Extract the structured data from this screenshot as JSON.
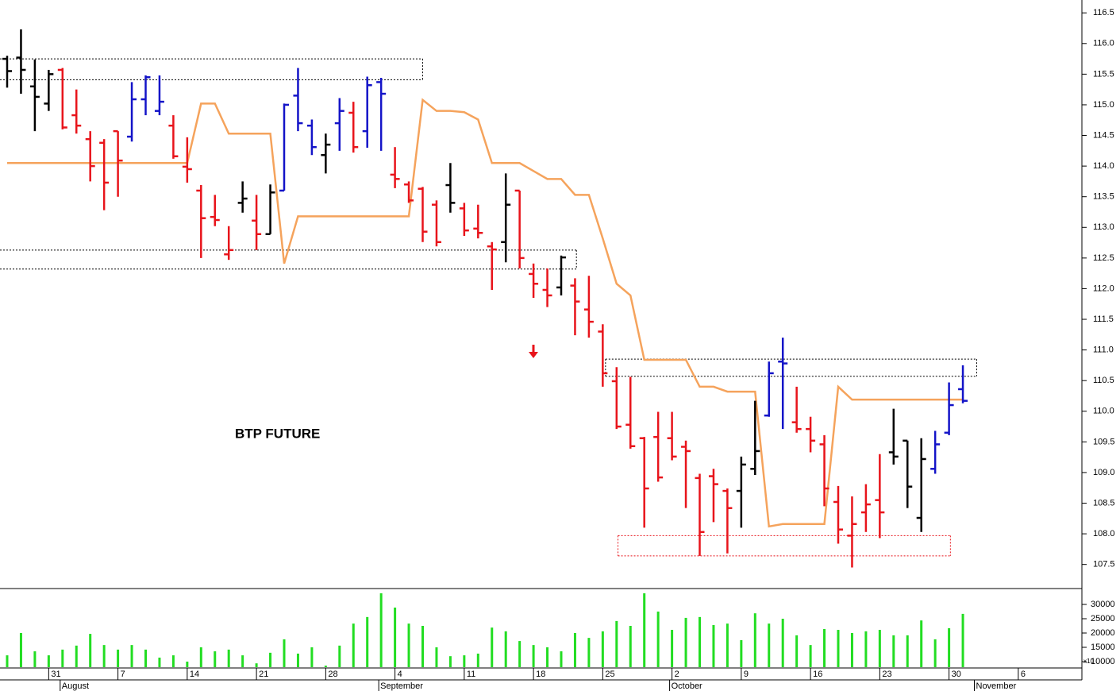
{
  "chart_data": {
    "type": "ohlc",
    "title": "BTP FUTURE",
    "categories": [
      null,
      null,
      null,
      "31",
      null,
      null,
      null,
      null,
      "7",
      null,
      null,
      null,
      null,
      "14",
      null,
      null,
      null,
      null,
      "21",
      null,
      null,
      null,
      null,
      "28",
      null,
      null,
      null,
      null,
      "4",
      null,
      null,
      null,
      null,
      "11",
      null,
      null,
      null,
      null,
      "18",
      null,
      null,
      null,
      null,
      "25",
      null,
      null,
      null,
      null,
      "2",
      null,
      null,
      null,
      null,
      "9",
      null,
      null,
      null,
      null,
      "16",
      null,
      null,
      null,
      null,
      "23",
      null,
      null,
      null,
      null,
      "30",
      null,
      null,
      null,
      null,
      "6",
      null,
      null,
      null,
      null
    ],
    "month_labels": [
      null,
      null,
      null,
      null,
      "August",
      null,
      null,
      null,
      null,
      null,
      null,
      null,
      null,
      null,
      null,
      null,
      null,
      null,
      null,
      null,
      null,
      null,
      null,
      null,
      null,
      null,
      null,
      "September",
      null,
      null,
      null,
      null,
      null,
      null,
      null,
      null,
      null,
      null,
      null,
      null,
      null,
      null,
      null,
      null,
      null,
      null,
      null,
      null,
      "October",
      null,
      null,
      null,
      null,
      null,
      null,
      null,
      null,
      null,
      null,
      null,
      null,
      null,
      null,
      null,
      null,
      null,
      null,
      null,
      null,
      null,
      "November",
      null,
      null,
      null,
      null,
      null,
      null,
      null
    ],
    "open": [
      115.75,
      115.77,
      115.3,
      115.02,
      115.57,
      114.83,
      114.44,
      114.38,
      114.57,
      114.48,
      115.09,
      114.9,
      114.66,
      113.99,
      113.6,
      113.17,
      112.56,
      113.4,
      113.11,
      112.89,
      113.6,
      115.15,
      114.66,
      114.18,
      114.7,
      114.87,
      114.57,
      115.37,
      113.86,
      113.7,
      113.63,
      113.37,
      113.69,
      113.31,
      112.98,
      112.69,
      112.76,
      113.6,
      112.24,
      111.98,
      112.02,
      112.05,
      111.66,
      111.3,
      110.49,
      109.78,
      109.56,
      109.58,
      109.56,
      109.42,
      108.91,
      108.94,
      108.7,
      108.7,
      109.06,
      109.93,
      110.81,
      109.82,
      109.71,
      109.46,
      108.52,
      107.97,
      108.35,
      108.55,
      109.33,
      109.52,
      108.26,
      109.06,
      109.65,
      110.36,
      null,
      null,
      null,
      null,
      null,
      null,
      null,
      null
    ],
    "high": [
      115.8,
      116.23,
      115.74,
      115.57,
      115.6,
      115.25,
      114.57,
      114.44,
      114.57,
      115.37,
      115.48,
      115.48,
      114.83,
      114.47,
      113.69,
      113.53,
      113.02,
      113.75,
      113.53,
      113.7,
      115.02,
      115.6,
      114.76,
      114.53,
      115.11,
      115.05,
      115.46,
      115.44,
      114.31,
      113.75,
      113.66,
      113.44,
      114.05,
      113.4,
      113.37,
      112.76,
      113.88,
      113.6,
      112.41,
      112.33,
      112.54,
      112.17,
      112.21,
      111.42,
      110.72,
      110.56,
      109.58,
      109.99,
      109.99,
      109.52,
      108.98,
      109.06,
      108.74,
      109.26,
      110.17,
      110.81,
      111.2,
      110.4,
      109.91,
      109.61,
      108.78,
      108.61,
      108.81,
      109.3,
      110.04,
      109.52,
      109.56,
      109.68,
      110.47,
      110.75,
      null,
      null,
      null,
      null,
      null,
      null,
      null,
      null
    ],
    "low": [
      115.28,
      115.18,
      114.57,
      114.9,
      114.6,
      114.53,
      113.75,
      113.28,
      113.5,
      114.4,
      114.83,
      114.83,
      114.12,
      113.73,
      112.5,
      113.02,
      112.47,
      113.24,
      112.63,
      112.89,
      113.6,
      114.57,
      114.18,
      113.88,
      114.25,
      114.22,
      114.3,
      114.25,
      113.64,
      113.4,
      112.76,
      112.69,
      113.24,
      112.86,
      112.82,
      111.98,
      112.43,
      112.33,
      111.85,
      111.7,
      111.89,
      111.24,
      111.2,
      110.4,
      109.71,
      109.39,
      108.1,
      108.85,
      109.2,
      108.42,
      107.64,
      108.19,
      107.68,
      108.1,
      108.96,
      109.91,
      109.71,
      109.65,
      109.33,
      108.45,
      107.84,
      107.45,
      108.03,
      107.93,
      109.13,
      108.42,
      108.03,
      108.98,
      109.61,
      110.13,
      null,
      null,
      null,
      null,
      null,
      null,
      null,
      null
    ],
    "close": [
      115.55,
      115.57,
      115.13,
      115.5,
      114.63,
      114.66,
      114.0,
      113.73,
      114.09,
      115.09,
      115.45,
      115.05,
      114.16,
      113.95,
      113.15,
      113.12,
      112.63,
      113.47,
      112.89,
      113.57,
      115.0,
      114.7,
      114.31,
      114.35,
      114.9,
      114.31,
      115.32,
      115.18,
      113.79,
      113.44,
      112.93,
      112.76,
      113.4,
      112.95,
      112.91,
      112.64,
      113.37,
      112.5,
      112.08,
      111.89,
      112.51,
      111.79,
      111.46,
      110.62,
      109.75,
      109.43,
      108.74,
      108.92,
      109.26,
      109.35,
      108.03,
      108.81,
      108.42,
      109.13,
      109.35,
      110.62,
      110.78,
      109.71,
      109.52,
      108.74,
      108.07,
      108.16,
      108.48,
      108.35,
      109.26,
      108.77,
      109.22,
      109.46,
      110.1,
      110.17,
      null,
      null,
      null,
      null,
      null,
      null,
      null,
      null
    ],
    "bar_colors": [
      "black",
      "black",
      "black",
      "black",
      "red",
      "red",
      "red",
      "red",
      "red",
      "blue",
      "blue",
      "blue",
      "red",
      "red",
      "red",
      "red",
      "red",
      "black",
      "red",
      "black",
      "blue",
      "blue",
      "blue",
      "black",
      "blue",
      "red",
      "blue",
      "blue",
      "red",
      "red",
      "red",
      "red",
      "black",
      "red",
      "red",
      "red",
      "black",
      "red",
      "red",
      "red",
      "black",
      "red",
      "red",
      "red",
      "red",
      "red",
      "red",
      "red",
      "red",
      "red",
      "red",
      "red",
      "red",
      "black",
      "black",
      "blue",
      "blue",
      "red",
      "red",
      "red",
      "red",
      "red",
      "red",
      "red",
      "black",
      "black",
      "black",
      "blue",
      "blue",
      "blue",
      null,
      null,
      null,
      null,
      null,
      null,
      null,
      null
    ],
    "palette": {
      "red": "#e8141b",
      "black": "#000000",
      "blue": "#1414c8"
    },
    "overlay": {
      "color": "#f5a35c",
      "values": [
        114.05,
        114.05,
        114.05,
        114.05,
        114.05,
        114.05,
        114.05,
        114.05,
        114.05,
        114.05,
        114.05,
        114.05,
        114.05,
        114.05,
        115.02,
        115.02,
        114.53,
        114.53,
        114.53,
        114.53,
        112.41,
        113.18,
        113.18,
        113.18,
        113.18,
        113.18,
        113.18,
        113.18,
        113.18,
        113.18,
        115.08,
        114.9,
        114.9,
        114.88,
        114.76,
        114.05,
        114.05,
        114.05,
        113.92,
        113.79,
        113.79,
        113.53,
        113.53,
        112.82,
        112.08,
        111.89,
        110.84,
        110.84,
        110.84,
        110.84,
        110.4,
        110.4,
        110.32,
        110.32,
        110.32,
        108.12,
        108.16,
        108.16,
        108.16,
        108.16,
        110.4,
        110.19,
        110.19,
        110.19,
        110.19,
        110.19,
        110.19,
        110.19,
        110.19,
        110.19,
        null,
        null,
        null,
        null,
        null,
        null,
        null,
        null
      ]
    },
    "zones": [
      {
        "top": 115.75,
        "bottom": 115.41,
        "color": "#000000"
      },
      {
        "top": 112.63,
        "bottom": 112.32,
        "color": "#000000"
      },
      {
        "top": 110.85,
        "bottom": 110.57,
        "color": "#000000"
      },
      {
        "top": 107.97,
        "bottom": 107.64,
        "color": "#e8141b"
      }
    ],
    "ylim": [
      107.12,
      116.71
    ],
    "yticks": [
      107.5,
      {
        "value": 108,
        "label": "108.0"
      },
      108.5,
      {
        "value": 109,
        "label": "109.0"
      },
      109.5,
      {
        "value": 110,
        "label": "110.0"
      },
      110.5,
      {
        "value": 111,
        "label": "111.0"
      },
      111.5,
      {
        "value": 112,
        "label": "112.0"
      },
      112.5,
      {
        "value": 113,
        "label": "113.0"
      },
      113.5,
      {
        "value": 114,
        "label": "114.0"
      },
      114.5,
      {
        "value": 115,
        "label": "115.0"
      },
      115.5,
      {
        "value": 116,
        "label": "116.0"
      },
      116.5
    ],
    "volume": {
      "color": "#22dd22",
      "multiplier_label": "x10",
      "values": [
        12200,
        20000,
        13600,
        12200,
        14200,
        15600,
        19700,
        15800,
        14200,
        15800,
        14200,
        11400,
        12200,
        10000,
        15000,
        13600,
        14200,
        12200,
        9400,
        13100,
        17800,
        12800,
        15000,
        8600,
        15600,
        23300,
        25600,
        33900,
        28900,
        23300,
        22500,
        15000,
        11900,
        12200,
        12800,
        21900,
        20600,
        17200,
        15800,
        15000,
        13600,
        20000,
        18300,
        20600,
        24200,
        22500,
        33900,
        27500,
        21100,
        25300,
        25600,
        22800,
        23300,
        17500,
        26900,
        23300,
        25000,
        19200,
        15800,
        21400,
        21100,
        20000,
        20600,
        21100,
        19200,
        19200,
        24400,
        17800,
        21700,
        26700,
        null,
        null,
        null,
        null,
        null,
        null,
        null,
        null
      ],
      "ylim": [
        8056,
        35556
      ],
      "yticks": [
        30000,
        25000,
        20000,
        15000,
        10000
      ]
    }
  }
}
